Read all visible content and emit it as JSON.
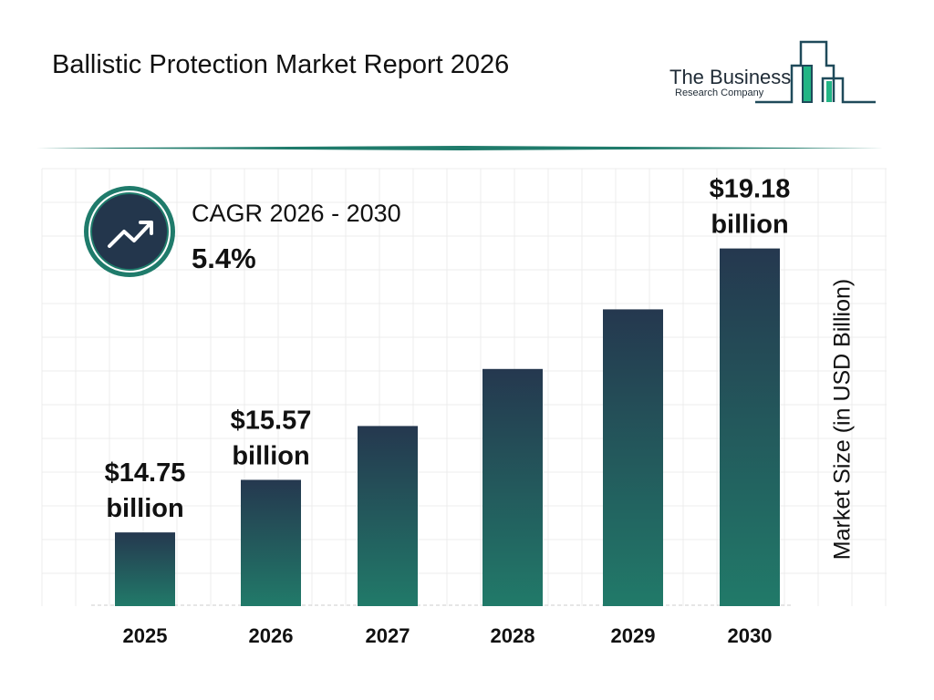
{
  "header": {
    "title": "Ballistic Protection Market Report 2026"
  },
  "logo": {
    "line1": "The Business",
    "line2": "Research Company"
  },
  "cagr": {
    "label": "CAGR 2026 - 2030",
    "value": "5.4%",
    "icon": "trending-up-icon"
  },
  "colors": {
    "bar_top": "#25384f",
    "bar_bottom": "#217a69",
    "accent": "#1f7b6b"
  },
  "chart_data": {
    "type": "bar",
    "title": "Ballistic Protection Market Report 2026",
    "categories": [
      "2025",
      "2026",
      "2027",
      "2028",
      "2029",
      "2030"
    ],
    "values": [
      14.75,
      15.57,
      16.41,
      17.3,
      18.23,
      19.18
    ],
    "data_labels": [
      {
        "index": 0,
        "line1": "$14.75",
        "line2": "billion"
      },
      {
        "index": 1,
        "line1": "$15.57",
        "line2": "billion"
      },
      {
        "index": 5,
        "line1": "$19.18",
        "line2": "billion"
      }
    ],
    "xlabel": "",
    "ylabel": "Market Size (in USD Billion)",
    "ylim": [
      13.6,
      19.8
    ],
    "grid": true
  }
}
